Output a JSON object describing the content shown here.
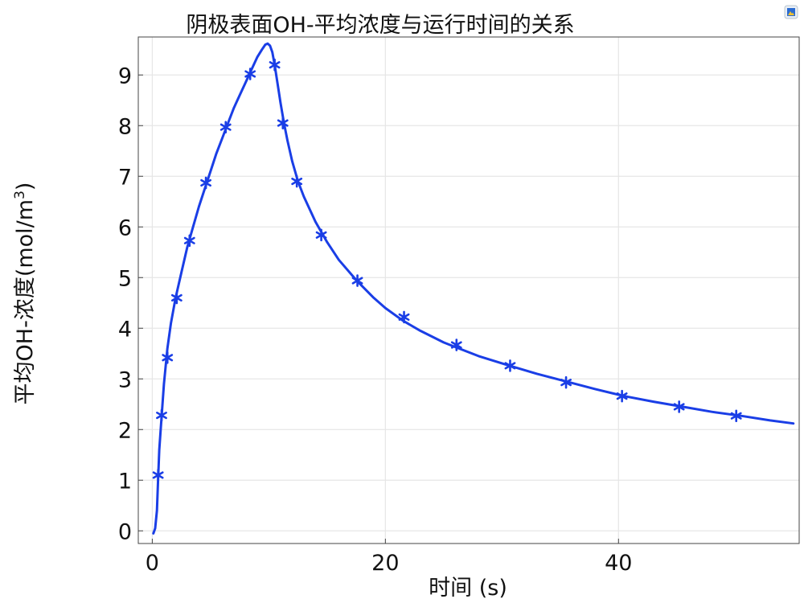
{
  "chart_data": {
    "type": "line",
    "title": "阴极表面OH-平均浓度与运行时间的关系",
    "xlabel": "时间 (s)",
    "ylabel_main": "平均OH-浓度(mol/m",
    "ylabel_sup": "3",
    "ylabel_tail": ")",
    "xlim": [
      -1.2,
      55.5
    ],
    "ylim": [
      -0.25,
      9.75
    ],
    "xticks": [
      0,
      20,
      40
    ],
    "yticks": [
      0,
      1,
      2,
      3,
      4,
      5,
      6,
      7,
      8,
      9
    ],
    "grid": true,
    "series": [
      {
        "color": "#1a3ee6",
        "line_x": [
          0.1,
          0.25,
          0.4,
          0.5,
          0.6,
          0.75,
          1.0,
          1.3,
          1.6,
          2.0,
          2.5,
          3.0,
          3.5,
          4.0,
          4.5,
          5.0,
          5.5,
          6.0,
          6.5,
          7.0,
          7.5,
          8.0,
          8.5,
          9.0,
          9.4,
          9.7,
          9.9,
          10.1,
          10.3,
          10.5,
          10.8,
          11.0,
          11.3,
          11.6,
          12.0,
          12.5,
          13.0,
          14.0,
          15.0,
          16.0,
          17.5,
          19.0,
          20.0,
          21.5,
          23.0,
          25.0,
          26.0,
          28.0,
          30.5,
          33.0,
          35.5,
          38.0,
          40.5,
          43.0,
          45.5,
          48.0,
          50.5,
          53.0,
          55.0
        ],
        "line_y": [
          -0.05,
          0.05,
          0.4,
          1.0,
          1.6,
          2.1,
          2.9,
          3.6,
          4.1,
          4.6,
          5.1,
          5.6,
          6.0,
          6.4,
          6.75,
          7.1,
          7.45,
          7.75,
          8.05,
          8.35,
          8.6,
          8.85,
          9.1,
          9.35,
          9.5,
          9.6,
          9.62,
          9.58,
          9.45,
          9.2,
          8.75,
          8.45,
          8.05,
          7.7,
          7.3,
          6.9,
          6.6,
          6.1,
          5.7,
          5.35,
          4.95,
          4.6,
          4.4,
          4.15,
          3.95,
          3.72,
          3.63,
          3.45,
          3.27,
          3.1,
          2.95,
          2.8,
          2.66,
          2.55,
          2.45,
          2.35,
          2.27,
          2.18,
          2.12
        ],
        "marker_x": [
          0.5,
          0.8,
          1.3,
          2.1,
          3.2,
          4.6,
          6.3,
          8.4,
          10.5,
          11.2,
          12.4,
          14.5,
          17.6,
          21.6,
          26.1,
          30.7,
          35.5,
          40.3,
          45.2,
          50.1
        ],
        "marker_y": [
          1.1,
          2.28,
          3.42,
          4.6,
          5.73,
          6.87,
          7.97,
          9.02,
          9.2,
          8.05,
          6.9,
          5.84,
          4.94,
          4.22,
          3.67,
          3.26,
          2.93,
          2.66,
          2.45,
          2.27
        ]
      }
    ]
  },
  "toolbar": {
    "icon": "image-icon"
  }
}
